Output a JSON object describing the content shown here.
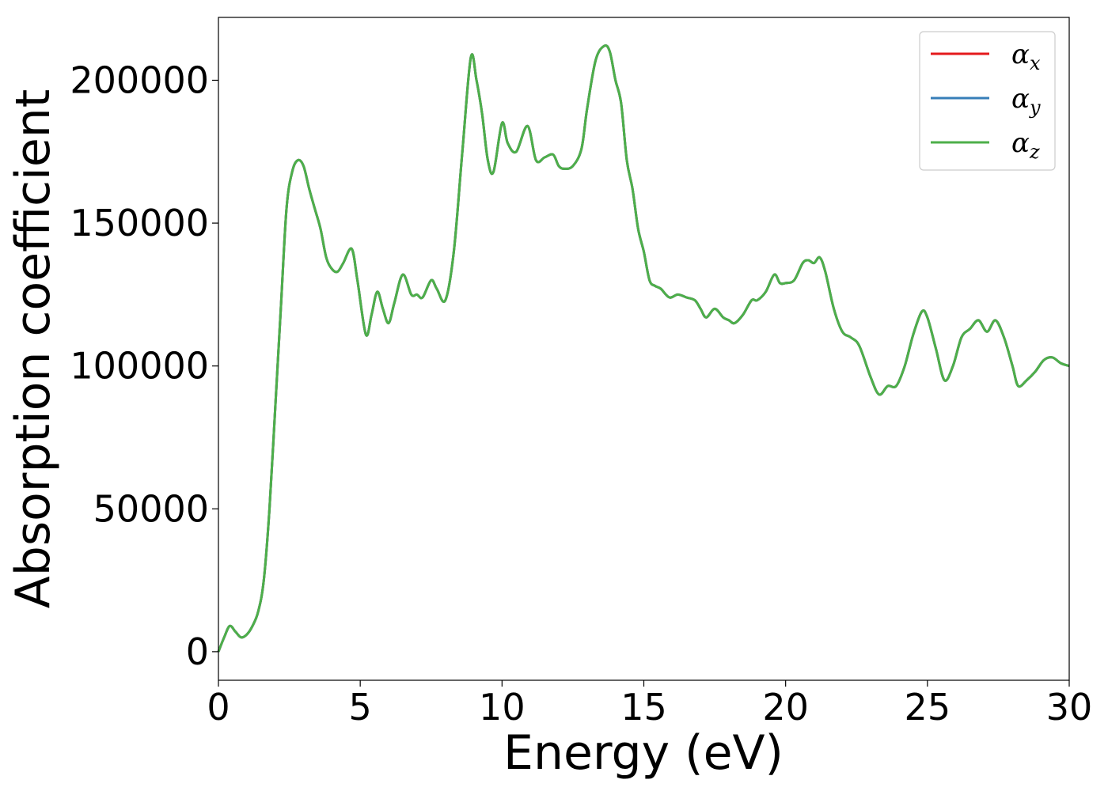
{
  "chart_data": {
    "type": "line",
    "xlabel": "Energy (eV)",
    "ylabel": "Absorption coefficient",
    "xlim": [
      0,
      30
    ],
    "ylim": [
      -10000,
      222000
    ],
    "xticks": [
      0,
      5,
      10,
      15,
      20,
      25,
      30
    ],
    "yticks": [
      0,
      50000,
      100000,
      150000,
      200000
    ],
    "grid": false,
    "legend": {
      "position": "top-right",
      "entries": [
        {
          "symbol": "α",
          "sub": "x",
          "color": "#e41a1c"
        },
        {
          "symbol": "α",
          "sub": "y",
          "color": "#377eb8"
        },
        {
          "symbol": "α",
          "sub": "z",
          "color": "#4daf4a"
        }
      ]
    },
    "series": [
      {
        "color": "#e41a1c",
        "x": [
          0,
          0.2,
          0.4,
          0.6,
          0.8,
          1.0,
          1.2,
          1.4,
          1.6,
          1.8,
          2.0,
          2.2,
          2.4,
          2.6,
          2.8,
          3.0,
          3.2,
          3.4,
          3.6,
          3.8,
          4.0,
          4.2,
          4.4,
          4.7,
          4.9,
          5.2,
          5.4,
          5.6,
          5.8,
          6.0,
          6.2,
          6.5,
          6.8,
          7.0,
          7.2,
          7.5,
          7.7,
          8.0,
          8.3,
          8.6,
          8.9,
          9.1,
          9.3,
          9.5,
          9.7,
          10.0,
          10.2,
          10.5,
          10.9,
          11.2,
          11.5,
          11.8,
          12.0,
          12.2,
          12.5,
          12.8,
          13.0,
          13.3,
          13.6,
          13.8,
          14.0,
          14.2,
          14.4,
          14.6,
          14.8,
          15.0,
          15.2,
          15.4,
          15.6,
          15.9,
          16.2,
          16.5,
          16.8,
          17.0,
          17.2,
          17.5,
          17.8,
          18.0,
          18.2,
          18.5,
          18.8,
          19.0,
          19.3,
          19.6,
          19.8,
          20.0,
          20.3,
          20.6,
          20.8,
          21.0,
          21.2,
          21.4,
          21.7,
          22.0,
          22.3,
          22.6,
          23.0,
          23.3,
          23.6,
          23.9,
          24.2,
          24.5,
          24.8,
          25.0,
          25.3,
          25.6,
          25.9,
          26.2,
          26.5,
          26.8,
          27.1,
          27.4,
          27.7,
          28.0,
          28.2,
          28.5,
          28.8,
          29.1,
          29.4,
          29.7,
          30.0
        ],
        "y": [
          0,
          5000,
          9000,
          7000,
          5000,
          6000,
          9000,
          14000,
          25000,
          50000,
          85000,
          120000,
          155000,
          168000,
          172000,
          170000,
          162000,
          155000,
          148000,
          138000,
          134000,
          133000,
          136000,
          141000,
          130000,
          111000,
          118000,
          126000,
          120000,
          115000,
          122000,
          132000,
          125000,
          125000,
          124000,
          130000,
          127000,
          123000,
          140000,
          175000,
          208000,
          200000,
          188000,
          172000,
          168000,
          185000,
          178000,
          175000,
          184000,
          172000,
          173000,
          174000,
          170000,
          169000,
          170000,
          176000,
          190000,
          207000,
          212000,
          210000,
          200000,
          192000,
          172000,
          162000,
          148000,
          140000,
          130000,
          128000,
          127000,
          124000,
          125000,
          124000,
          123000,
          120000,
          117000,
          120000,
          117000,
          116000,
          115000,
          118000,
          123000,
          123000,
          126000,
          132000,
          129000,
          129000,
          130000,
          136000,
          137000,
          136000,
          138000,
          133000,
          120000,
          112000,
          110000,
          107000,
          96000,
          90000,
          93000,
          93000,
          100000,
          111000,
          119000,
          117000,
          106000,
          95000,
          100000,
          110000,
          113000,
          116000,
          112000,
          116000,
          110000,
          100000,
          93000,
          95000,
          98000,
          102000,
          103000,
          101000,
          100000
        ]
      },
      {
        "color": "#377eb8",
        "x": [
          0,
          0.2,
          0.4,
          0.6,
          0.8,
          1.0,
          1.2,
          1.4,
          1.6,
          1.8,
          2.0,
          2.2,
          2.4,
          2.6,
          2.8,
          3.0,
          3.2,
          3.4,
          3.6,
          3.8,
          4.0,
          4.2,
          4.4,
          4.7,
          4.9,
          5.2,
          5.4,
          5.6,
          5.8,
          6.0,
          6.2,
          6.5,
          6.8,
          7.0,
          7.2,
          7.5,
          7.7,
          8.0,
          8.3,
          8.6,
          8.9,
          9.1,
          9.3,
          9.5,
          9.7,
          10.0,
          10.2,
          10.5,
          10.9,
          11.2,
          11.5,
          11.8,
          12.0,
          12.2,
          12.5,
          12.8,
          13.0,
          13.3,
          13.6,
          13.8,
          14.0,
          14.2,
          14.4,
          14.6,
          14.8,
          15.0,
          15.2,
          15.4,
          15.6,
          15.9,
          16.2,
          16.5,
          16.8,
          17.0,
          17.2,
          17.5,
          17.8,
          18.0,
          18.2,
          18.5,
          18.8,
          19.0,
          19.3,
          19.6,
          19.8,
          20.0,
          20.3,
          20.6,
          20.8,
          21.0,
          21.2,
          21.4,
          21.7,
          22.0,
          22.3,
          22.6,
          23.0,
          23.3,
          23.6,
          23.9,
          24.2,
          24.5,
          24.8,
          25.0,
          25.3,
          25.6,
          25.9,
          26.2,
          26.5,
          26.8,
          27.1,
          27.4,
          27.7,
          28.0,
          28.2,
          28.5,
          28.8,
          29.1,
          29.4,
          29.7,
          30.0
        ],
        "y": [
          0,
          5000,
          9000,
          7000,
          5000,
          6000,
          9000,
          14000,
          25000,
          50000,
          85000,
          120000,
          155000,
          168000,
          172000,
          170000,
          162000,
          155000,
          148000,
          138000,
          134000,
          133000,
          136000,
          141000,
          130000,
          111000,
          118000,
          126000,
          120000,
          115000,
          122000,
          132000,
          125000,
          125000,
          124000,
          130000,
          127000,
          123000,
          140000,
          175000,
          208000,
          200000,
          188000,
          172000,
          168000,
          185000,
          178000,
          175000,
          184000,
          172000,
          173000,
          174000,
          170000,
          169000,
          170000,
          176000,
          190000,
          207000,
          212000,
          210000,
          200000,
          192000,
          172000,
          162000,
          148000,
          140000,
          130000,
          128000,
          127000,
          124000,
          125000,
          124000,
          123000,
          120000,
          117000,
          120000,
          117000,
          116000,
          115000,
          118000,
          123000,
          123000,
          126000,
          132000,
          129000,
          129000,
          130000,
          136000,
          137000,
          136000,
          138000,
          133000,
          120000,
          112000,
          110000,
          107000,
          96000,
          90000,
          93000,
          93000,
          100000,
          111000,
          119000,
          117000,
          106000,
          95000,
          100000,
          110000,
          113000,
          116000,
          112000,
          116000,
          110000,
          100000,
          93000,
          95000,
          98000,
          102000,
          103000,
          101000,
          100000
        ]
      },
      {
        "color": "#4daf4a",
        "x": [
          0,
          0.2,
          0.4,
          0.6,
          0.8,
          1.0,
          1.2,
          1.4,
          1.6,
          1.8,
          2.0,
          2.2,
          2.4,
          2.6,
          2.8,
          3.0,
          3.2,
          3.4,
          3.6,
          3.8,
          4.0,
          4.2,
          4.4,
          4.7,
          4.9,
          5.2,
          5.4,
          5.6,
          5.8,
          6.0,
          6.2,
          6.5,
          6.8,
          7.0,
          7.2,
          7.5,
          7.7,
          8.0,
          8.3,
          8.6,
          8.9,
          9.1,
          9.3,
          9.5,
          9.7,
          10.0,
          10.2,
          10.5,
          10.9,
          11.2,
          11.5,
          11.8,
          12.0,
          12.2,
          12.5,
          12.8,
          13.0,
          13.3,
          13.6,
          13.8,
          14.0,
          14.2,
          14.4,
          14.6,
          14.8,
          15.0,
          15.2,
          15.4,
          15.6,
          15.9,
          16.2,
          16.5,
          16.8,
          17.0,
          17.2,
          17.5,
          17.8,
          18.0,
          18.2,
          18.5,
          18.8,
          19.0,
          19.3,
          19.6,
          19.8,
          20.0,
          20.3,
          20.6,
          20.8,
          21.0,
          21.2,
          21.4,
          21.7,
          22.0,
          22.3,
          22.6,
          23.0,
          23.3,
          23.6,
          23.9,
          24.2,
          24.5,
          24.8,
          25.0,
          25.3,
          25.6,
          25.9,
          26.2,
          26.5,
          26.8,
          27.1,
          27.4,
          27.7,
          28.0,
          28.2,
          28.5,
          28.8,
          29.1,
          29.4,
          29.7,
          30.0
        ],
        "y": [
          0,
          5000,
          9000,
          7000,
          5000,
          6000,
          9000,
          14000,
          25000,
          50000,
          85000,
          120000,
          155000,
          168000,
          172000,
          170000,
          162000,
          155000,
          148000,
          138000,
          134000,
          133000,
          136000,
          141000,
          130000,
          111000,
          118000,
          126000,
          120000,
          115000,
          122000,
          132000,
          125000,
          125000,
          124000,
          130000,
          127000,
          123000,
          140000,
          175000,
          208000,
          200000,
          188000,
          172000,
          168000,
          185000,
          178000,
          175000,
          184000,
          172000,
          173000,
          174000,
          170000,
          169000,
          170000,
          176000,
          190000,
          207000,
          212000,
          210000,
          200000,
          192000,
          172000,
          162000,
          148000,
          140000,
          130000,
          128000,
          127000,
          124000,
          125000,
          124000,
          123000,
          120000,
          117000,
          120000,
          117000,
          116000,
          115000,
          118000,
          123000,
          123000,
          126000,
          132000,
          129000,
          129000,
          130000,
          136000,
          137000,
          136000,
          138000,
          133000,
          120000,
          112000,
          110000,
          107000,
          96000,
          90000,
          93000,
          93000,
          100000,
          111000,
          119000,
          117000,
          106000,
          95000,
          100000,
          110000,
          113000,
          116000,
          112000,
          116000,
          110000,
          100000,
          93000,
          95000,
          98000,
          102000,
          103000,
          101000,
          100000
        ]
      }
    ]
  }
}
